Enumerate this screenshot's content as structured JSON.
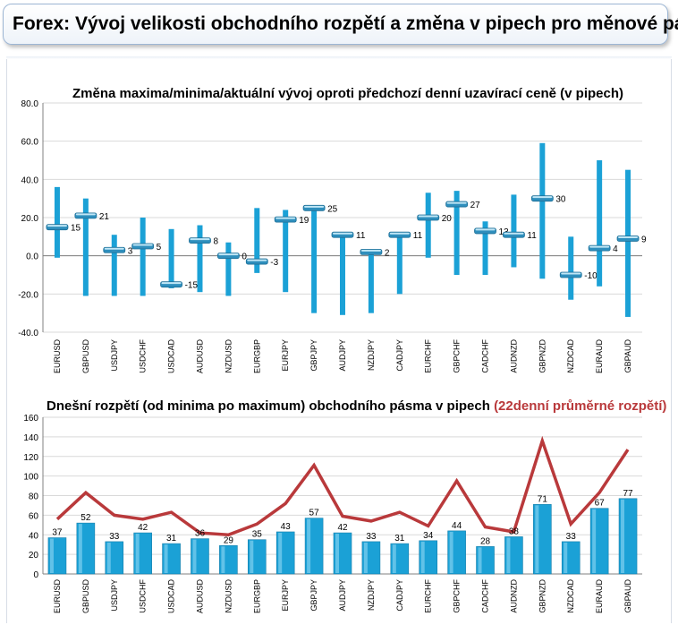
{
  "header": {
    "title": "Forex: Vývoj velikosti obchodního rozpětí a změna v pipech pro měnové páry"
  },
  "colors": {
    "bar": "#1ba1d6",
    "line": "#b9393b",
    "grid": "#d9d9d9",
    "axis": "#808080"
  },
  "chart_data": [
    {
      "type": "bar",
      "subtype": "high-low-close",
      "title": "Změna maxima/minima/aktuální vývoj oproti předchozí denní uzavírací ceně (v pipech)",
      "ylim": [
        -40,
        80
      ],
      "yticks": [
        "-40.0",
        "-20.0",
        "0.0",
        "20.0",
        "40.0",
        "60.0",
        "80.0"
      ],
      "grid": "horizontal",
      "categories": [
        "EURUSD",
        "GBPUSD",
        "USDJPY",
        "USDCHF",
        "USDCAD",
        "AUDUSD",
        "NZDUSD",
        "EURGBP",
        "EURJPY",
        "GBPJPY",
        "AUDJPY",
        "NZDJPY",
        "CADJPY",
        "EURCHF",
        "GBPCHF",
        "CADCHF",
        "AUDNZD",
        "GBPNZD",
        "NZDCAD",
        "EURAUD",
        "GBPAUD"
      ],
      "series": [
        {
          "name": "",
          "values": [
            36,
            30,
            11,
            20,
            14,
            16,
            7,
            25,
            24,
            25,
            11,
            2,
            11,
            33,
            34,
            18,
            32,
            59,
            10,
            50,
            45
          ]
        },
        {
          "name": "",
          "values": [
            -1,
            -21,
            -21,
            -21,
            -17,
            -19,
            -21,
            -9,
            -19,
            -30,
            -31,
            -30,
            -20,
            -1,
            -10,
            -10,
            -6,
            -12,
            -23,
            -16,
            -32
          ]
        },
        {
          "name": "",
          "values": [
            15,
            21,
            3,
            5,
            -15,
            8,
            0,
            -3,
            19,
            25,
            11,
            2,
            11,
            20,
            27,
            13,
            11,
            30,
            -10,
            4,
            9
          ]
        }
      ],
      "data_labels": [
        "15",
        "21",
        "3",
        "5",
        "-15",
        "8",
        "0",
        "-3",
        "19",
        "25",
        "11",
        "2",
        "11",
        "20",
        "27",
        "13",
        "11",
        "30",
        "-10",
        "4",
        "9"
      ]
    },
    {
      "type": "bar",
      "title": "Dnešní rozpětí (od minima po maximum) obchodního pásma v pipech",
      "title_highlight": "(22denní průměrné rozpětí)",
      "ylim": [
        0,
        160
      ],
      "yticks": [
        "0",
        "20",
        "40",
        "60",
        "80",
        "100",
        "120",
        "140",
        "160"
      ],
      "grid": "horizontal",
      "categories": [
        "EURUSD",
        "GBPUSD",
        "USDJPY",
        "USDCHF",
        "USDCAD",
        "AUDUSD",
        "NZDUSD",
        "EURGBP",
        "EURJPY",
        "GBPJPY",
        "AUDJPY",
        "NZDJPY",
        "CADJPY",
        "EURCHF",
        "GBPCHF",
        "CADCHF",
        "AUDNZD",
        "GBPNZD",
        "NZDCAD",
        "EURAUD",
        "GBPAUD"
      ],
      "series": [
        {
          "name": "",
          "type": "bar",
          "values": [
            37,
            52,
            33,
            42,
            31,
            36,
            29,
            35,
            43,
            57,
            42,
            33,
            31,
            34,
            44,
            28,
            38,
            71,
            33,
            67,
            77
          ]
        },
        {
          "name": "",
          "type": "line",
          "values": [
            56,
            83,
            60,
            56,
            63,
            42,
            40,
            51,
            72,
            111,
            59,
            54,
            63,
            49,
            95,
            48,
            43,
            136,
            51,
            83,
            127
          ]
        }
      ],
      "data_labels": [
        "37",
        "52",
        "33",
        "42",
        "31",
        "36",
        "29",
        "35",
        "43",
        "57",
        "42",
        "33",
        "31",
        "34",
        "44",
        "28",
        "38",
        "71",
        "33",
        "67",
        "77"
      ]
    }
  ]
}
